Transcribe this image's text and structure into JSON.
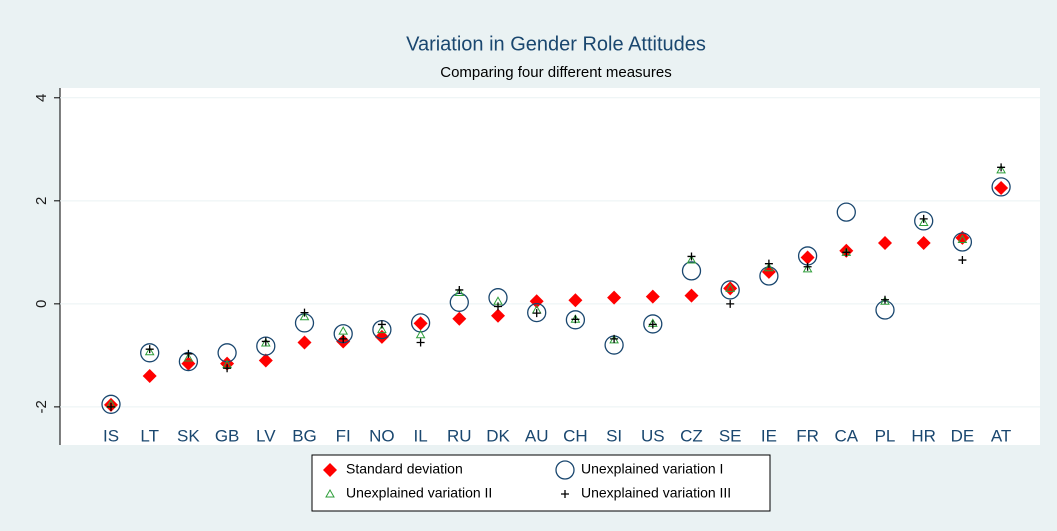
{
  "chart_data": {
    "type": "scatter",
    "title": "Variation in Gender Role Attitudes",
    "subtitle": "Comparing four different measures",
    "categories": [
      "IS",
      "LT",
      "SK",
      "GB",
      "LV",
      "BG",
      "FI",
      "NO",
      "IL",
      "RU",
      "DK",
      "AU",
      "CH",
      "SI",
      "US",
      "CZ",
      "SE",
      "IE",
      "FR",
      "CA",
      "PL",
      "HR",
      "DE",
      "AT"
    ],
    "ylim": [
      -2.74,
      4.19
    ],
    "yticks": [
      -2,
      0,
      2,
      4
    ],
    "grid": true,
    "series": [
      {
        "name": "Standard deviation",
        "color": "#ff0000",
        "marker": "diamond",
        "values": [
          -1.96,
          -1.4,
          -1.16,
          -1.16,
          -1.1,
          -0.75,
          -0.73,
          -0.64,
          -0.38,
          -0.29,
          -0.23,
          0.05,
          0.07,
          0.12,
          0.14,
          0.16,
          0.3,
          0.62,
          0.9,
          1.03,
          1.18,
          1.18,
          1.28,
          2.25
        ]
      },
      {
        "name": "Unexplained variation I",
        "color": "#1a476f",
        "marker": "circle",
        "values": [
          -1.95,
          -0.95,
          -1.12,
          -0.95,
          -0.82,
          -0.37,
          -0.58,
          -0.5,
          -0.37,
          0.03,
          0.12,
          -0.17,
          -0.31,
          -0.8,
          -0.39,
          0.64,
          0.27,
          0.54,
          0.93,
          1.78,
          -0.12,
          1.61,
          1.2,
          2.27
        ]
      },
      {
        "name": "Unexplained variation II",
        "color": "#2e9e3a",
        "marker": "triangle",
        "values": [
          -1.95,
          -0.93,
          -1.05,
          -1.18,
          -0.76,
          -0.25,
          -0.53,
          -0.5,
          -0.6,
          0.22,
          0.05,
          -0.12,
          -0.3,
          -0.7,
          -0.38,
          0.85,
          0.3,
          0.7,
          0.68,
          1.0,
          0.05,
          1.58,
          1.25,
          2.6
        ]
      },
      {
        "name": "Unexplained variation III",
        "color": "#000000",
        "marker": "plus",
        "values": [
          -2.0,
          -0.88,
          -0.97,
          -1.25,
          -0.73,
          -0.17,
          -0.68,
          -0.4,
          -0.75,
          0.27,
          -0.05,
          -0.18,
          -0.3,
          -0.68,
          -0.4,
          0.92,
          0.0,
          0.78,
          0.72,
          1.0,
          0.08,
          1.65,
          0.85,
          2.65
        ]
      }
    ]
  }
}
